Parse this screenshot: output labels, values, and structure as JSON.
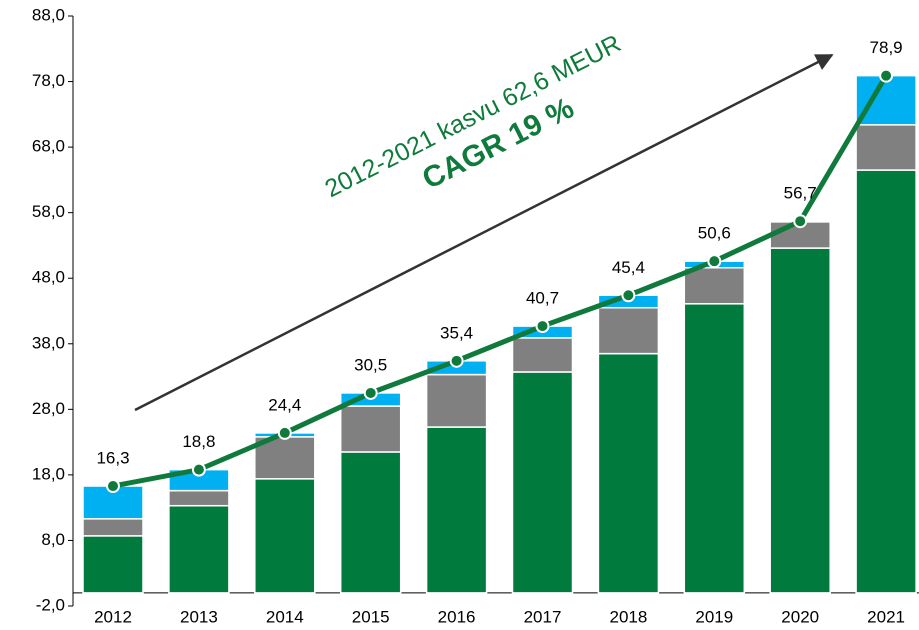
{
  "chart_data": {
    "type": "bar",
    "stacked": true,
    "annotations": [
      "2012-2021 kasvu 62,6 MEUR",
      "CAGR 19 %"
    ],
    "categories": [
      "2012",
      "2013",
      "2014",
      "2015",
      "2016",
      "2017",
      "2018",
      "2019",
      "2020",
      "2021"
    ],
    "series": [
      {
        "color": "#007a3d",
        "values": [
          8.7,
          13.3,
          17.4,
          21.5,
          25.3,
          33.7,
          36.5,
          44.1,
          52.6,
          64.5
        ]
      },
      {
        "color": "#808080",
        "values": [
          2.6,
          2.3,
          6.4,
          7.0,
          8.0,
          5.2,
          7.0,
          5.5,
          4.0,
          6.9
        ]
      },
      {
        "color": "#00b0f0",
        "values": [
          5.0,
          3.2,
          0.6,
          2.0,
          2.1,
          1.8,
          1.9,
          1.0,
          0.1,
          7.5
        ]
      },
      {
        "type": "line",
        "color": "#0f7a3b",
        "values": [
          16.3,
          18.8,
          24.4,
          30.5,
          35.4,
          40.7,
          45.4,
          50.6,
          56.7,
          78.9
        ],
        "value_labels": [
          "16,3",
          "18,8",
          "24,4",
          "30,5",
          "35,4",
          "40,7",
          "45,4",
          "50,6",
          "56,7",
          "78,9"
        ]
      }
    ],
    "ylim": [
      -2,
      88
    ],
    "yticks": [
      {
        "value": -2,
        "label": "-2,0"
      },
      {
        "value": 8,
        "label": "8,0"
      },
      {
        "value": 18,
        "label": "18,0"
      },
      {
        "value": 28,
        "label": "28,0"
      },
      {
        "value": 38,
        "label": "38,0"
      },
      {
        "value": 48,
        "label": "48,0"
      },
      {
        "value": 58,
        "label": "58,0"
      },
      {
        "value": 68,
        "label": "68,0"
      },
      {
        "value": 78,
        "label": "78,0"
      },
      {
        "value": 88,
        "label": "88,0"
      }
    ],
    "grid": false
  }
}
